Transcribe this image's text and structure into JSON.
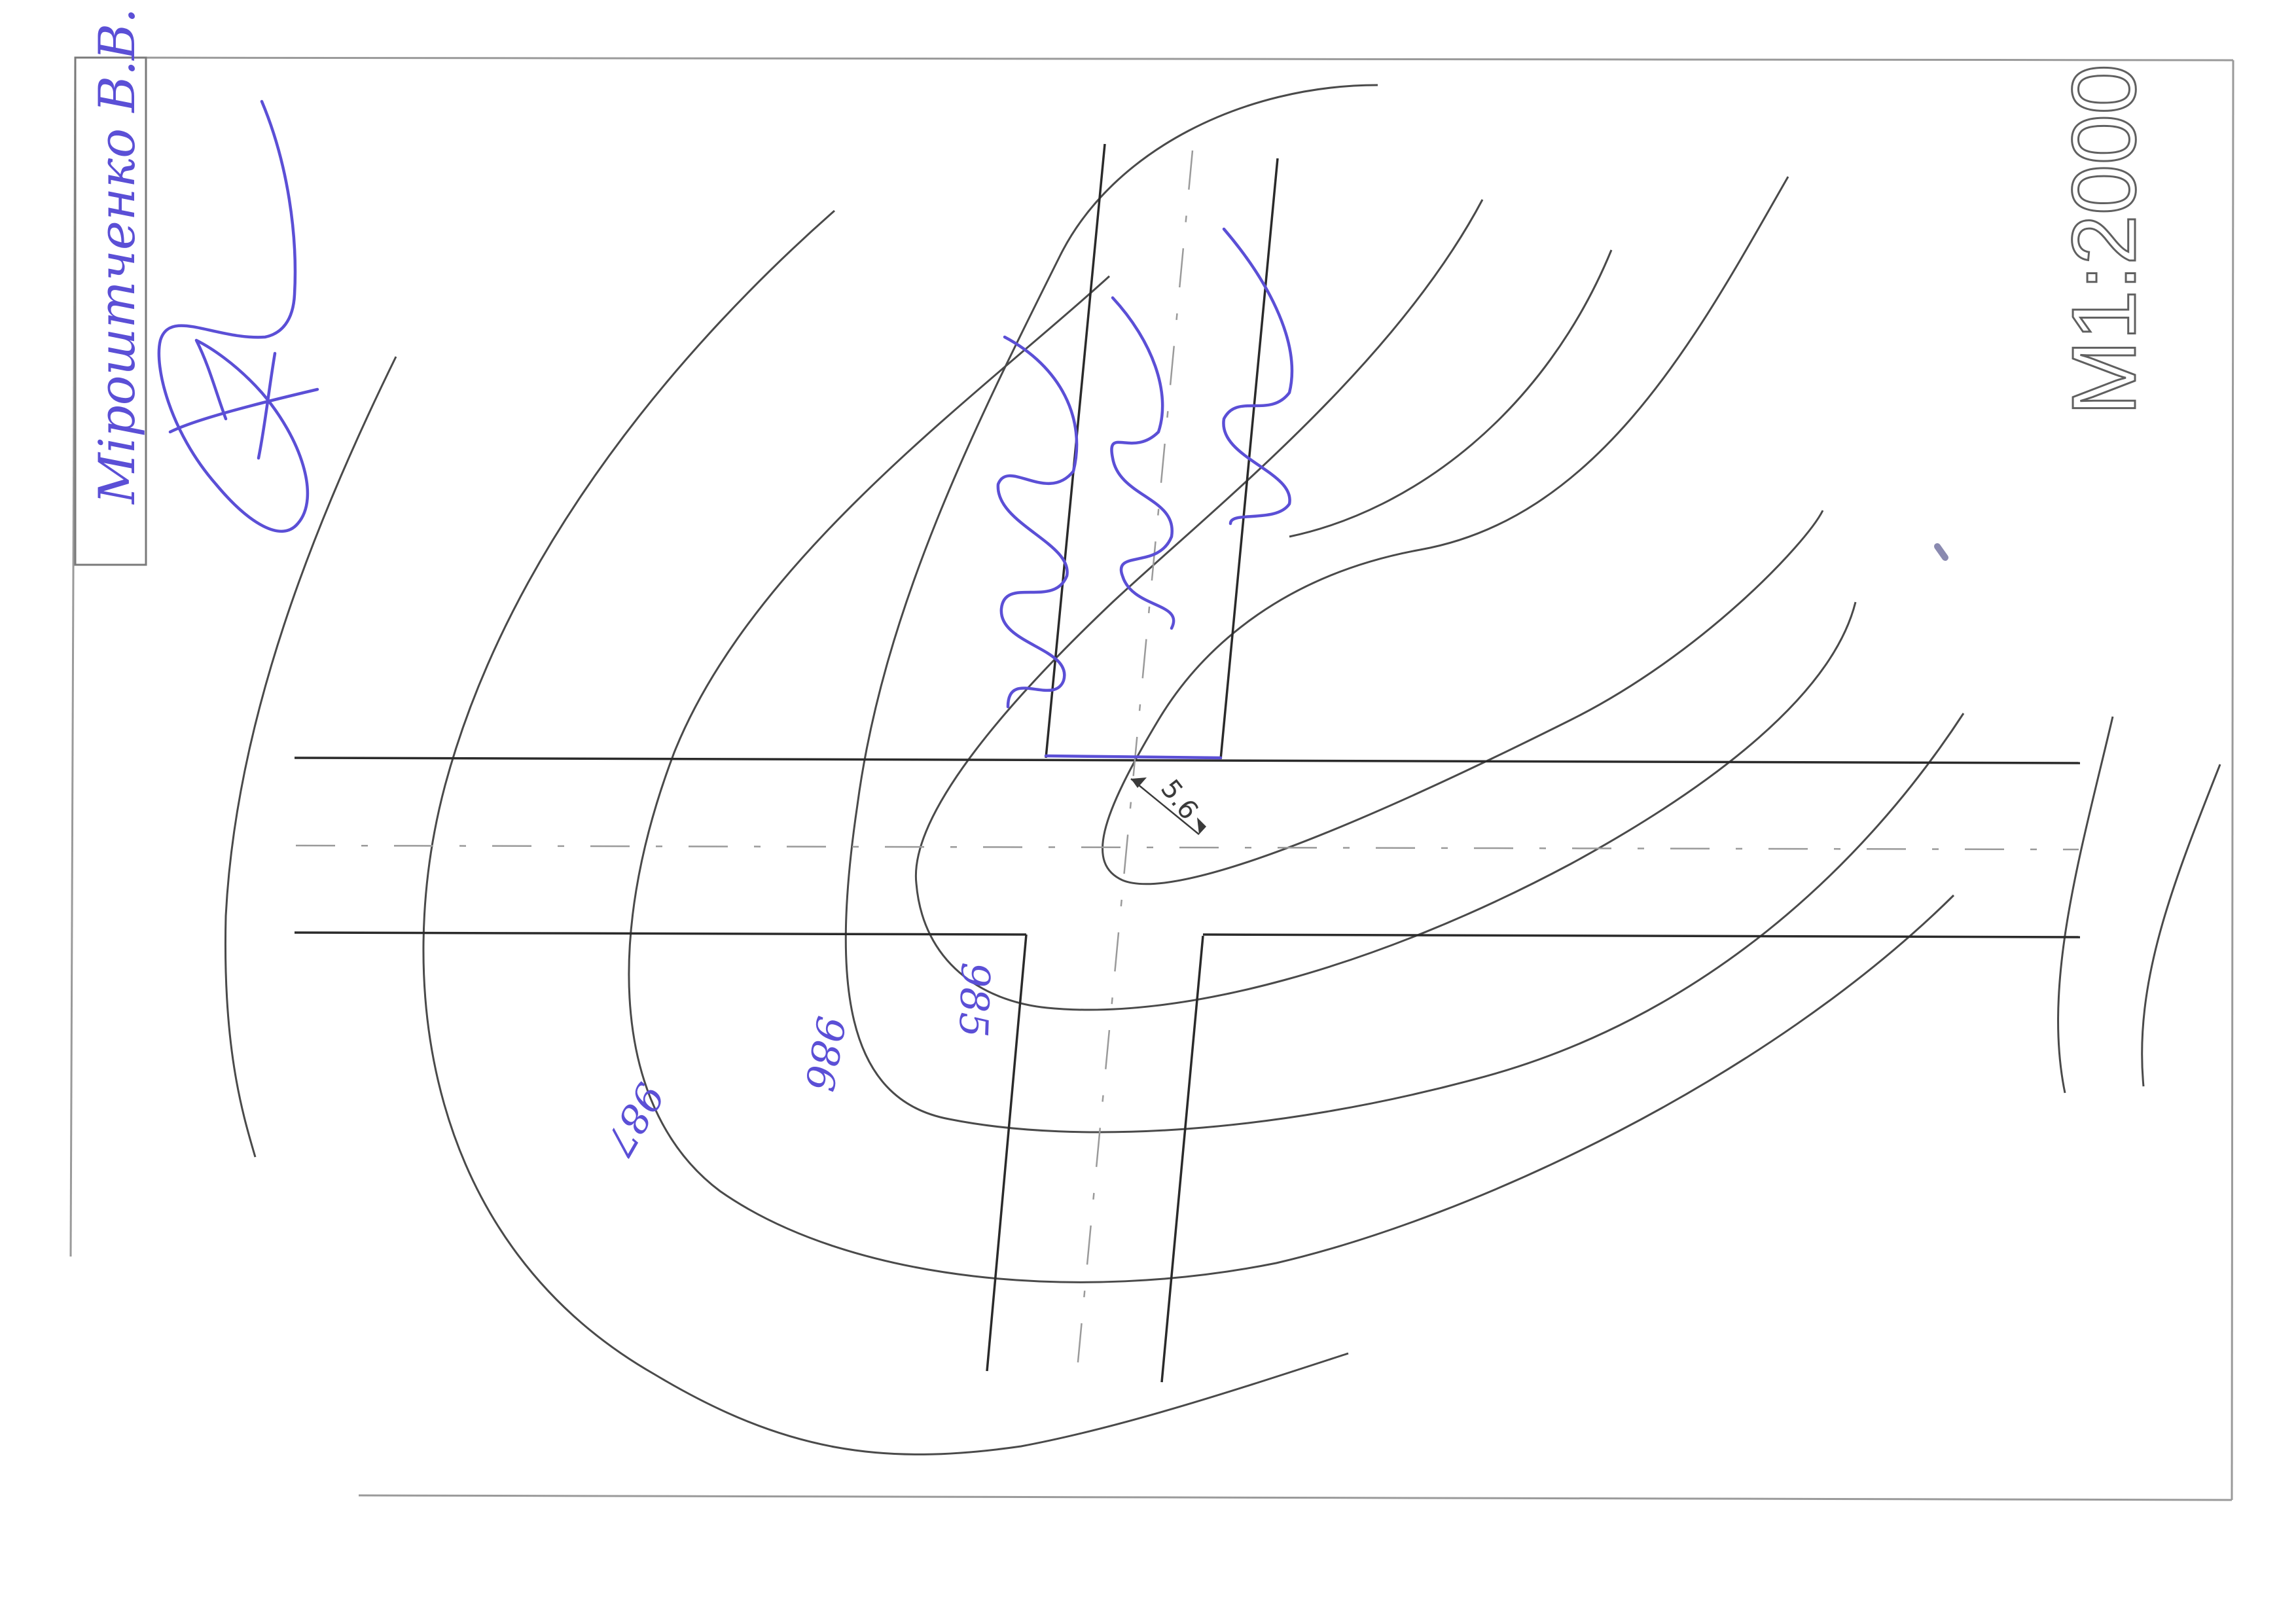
{
  "title_block": {
    "author": "Міроштченко В.В."
  },
  "scale": {
    "label": "M1:2000"
  },
  "contour_labels": [
    {
      "value": "985"
    },
    {
      "value": "986"
    },
    {
      "value": "987"
    }
  ],
  "dimension": {
    "label": "5.6"
  },
  "colors": {
    "ink": "#5b4fd6",
    "lines": "#4a4a4a",
    "frame": "#9a9a9a"
  },
  "icons": [
    "signature-icon",
    "hatch-marks-icon"
  ]
}
